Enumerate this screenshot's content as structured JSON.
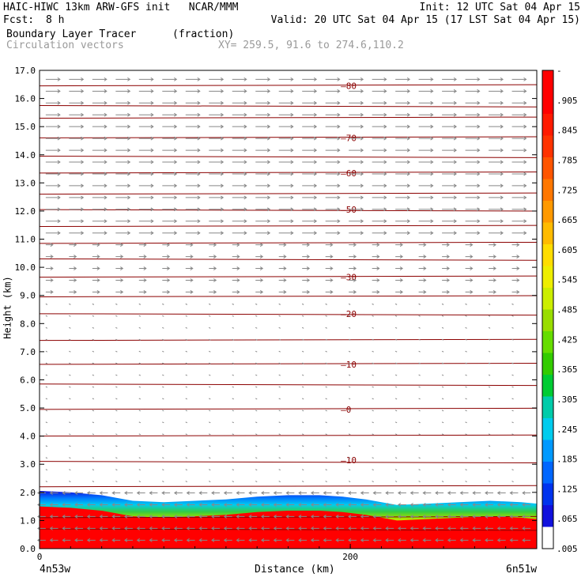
{
  "header": {
    "model": "HAIC-HIWC 13km ARW-GFS init   NCAR/MMM",
    "init": "Init: 12 UTC Sat 04 Apr 15",
    "fcst_label": "Fcst:",
    "fcst_value": "8 h",
    "valid": "Valid: 20 UTC Sat 04 Apr 15 (17 LST Sat 04 Apr 15)",
    "field": "Boundary Layer Tracer",
    "field_units": "(fraction)",
    "overlay": "Circulation vectors",
    "xy": "XY= 259.5, 91.6 to 274.6,110.2"
  },
  "chart_data": {
    "type": "heatmap",
    "xlabel": "Distance (km)",
    "ylabel": "Height (km)",
    "xlim": [
      0,
      320
    ],
    "ylim": [
      0,
      17
    ],
    "x_ticks": [
      "0",
      "200"
    ],
    "x_tick_values": [
      0,
      200
    ],
    "x_end_labels": {
      "left": "4n53w",
      "right": "6n51w"
    },
    "y_ticks": [
      "0.0",
      "1.0",
      "2.0",
      "3.0",
      "4.0",
      "5.0",
      "6.0",
      "7.0",
      "8.0",
      "9.0",
      "10.0",
      "11.0",
      "12.0",
      "13.0",
      "14.0",
      "15.0",
      "16.0",
      "17.0"
    ],
    "colorbar": {
      "labels": [
        "-",
        ".905",
        ".845",
        ".785",
        ".725",
        ".665",
        ".605",
        ".545",
        ".485",
        ".425",
        ".365",
        ".305",
        ".245",
        ".185",
        ".125",
        ".065",
        ".005"
      ],
      "colors": [
        "#ff0000",
        "#ff0000",
        "#ff1a00",
        "#ff3300",
        "#ff5500",
        "#ff7700",
        "#ff9900",
        "#ffbb00",
        "#ffdd00",
        "#eeee00",
        "#ccee00",
        "#99dd00",
        "#66dd00",
        "#33cc00",
        "#00cc33",
        "#00ccaa",
        "#00ccee",
        "#0099ff",
        "#0066ff",
        "#0033ee",
        "#1111dd",
        "#ffffff"
      ]
    },
    "tracer_top_km": [
      [
        0,
        2.05
      ],
      [
        20,
        2.0
      ],
      [
        40,
        1.9
      ],
      [
        60,
        1.7
      ],
      [
        80,
        1.65
      ],
      [
        100,
        1.7
      ],
      [
        120,
        1.75
      ],
      [
        140,
        1.85
      ],
      [
        160,
        1.9
      ],
      [
        180,
        1.9
      ],
      [
        195,
        1.85
      ],
      [
        210,
        1.75
      ],
      [
        230,
        1.55
      ],
      [
        250,
        1.6
      ],
      [
        270,
        1.65
      ],
      [
        290,
        1.7
      ],
      [
        310,
        1.65
      ],
      [
        320,
        1.6
      ]
    ],
    "contour_labels": [
      {
        "text": "80",
        "x": 200,
        "y": 16.45
      },
      {
        "text": "70",
        "x": 200,
        "y": 14.6
      },
      {
        "text": "60",
        "x": 200,
        "y": 13.35
      },
      {
        "text": "50",
        "x": 200,
        "y": 12.05
      },
      {
        "text": "30",
        "x": 200,
        "y": 9.65
      },
      {
        "text": "20",
        "x": 200,
        "y": 8.35
      },
      {
        "text": "10",
        "x": 200,
        "y": 6.55
      },
      {
        "text": "0",
        "x": 200,
        "y": 4.95
      },
      {
        "text": "10",
        "x": 200,
        "y": 3.15
      }
    ],
    "contour_levels_km": [
      0.7,
      1.1,
      2.2,
      3.1,
      4.0,
      4.95,
      5.85,
      6.55,
      7.4,
      8.35,
      8.95,
      9.65,
      10.3,
      10.85,
      11.45,
      12.05,
      12.6,
      13.35,
      13.95,
      14.6,
      15.3,
      15.75,
      16.45
    ]
  }
}
